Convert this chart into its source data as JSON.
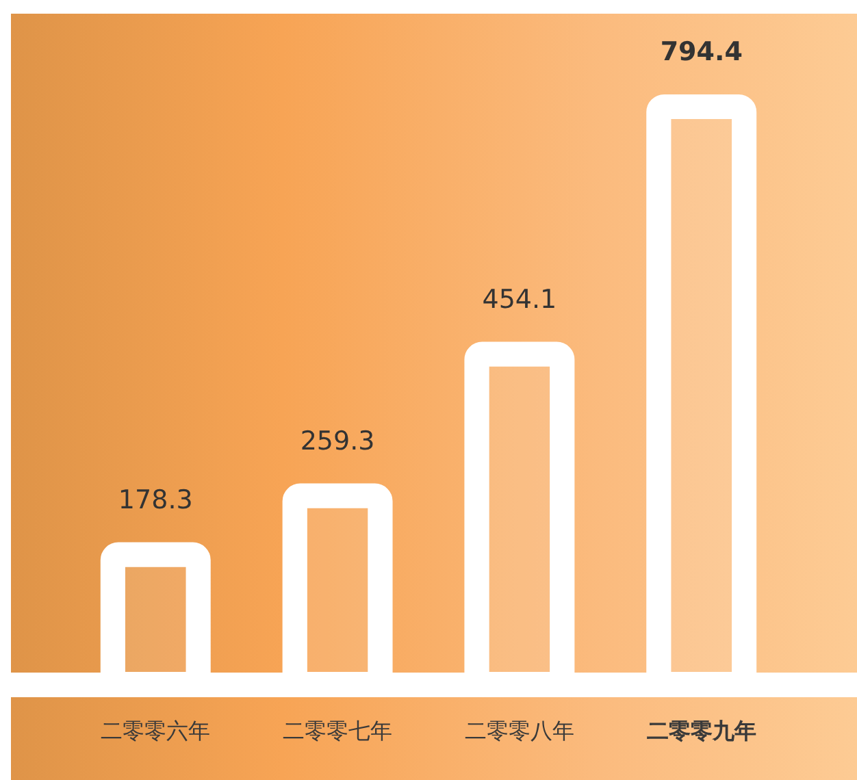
{
  "chart_data": {
    "type": "bar",
    "categories": [
      "二零零六年",
      "二零零七年",
      "二零零八年",
      "二零零九年"
    ],
    "values": [
      178.3,
      259.3,
      454.1,
      794.4
    ],
    "color": "#ffffff",
    "tick_labels": "x",
    "data_labels": true
  }
}
